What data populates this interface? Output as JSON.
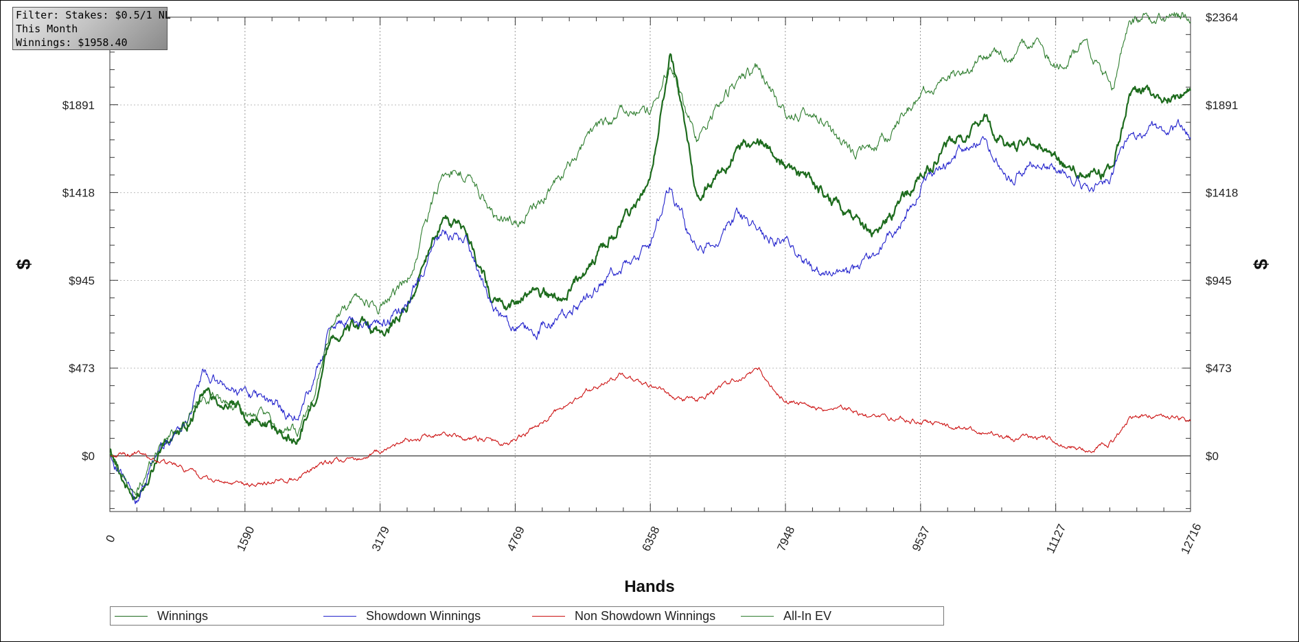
{
  "filter": {
    "line1": "Filter: Stakes: $0.5/1 NL",
    "line2": "This Month",
    "line3": "Winnings: $1958.40"
  },
  "chart_data": {
    "type": "line",
    "xlabel": "Hands",
    "ylabel_left": "$",
    "ylabel_right": "$",
    "xlim": [
      0,
      12716
    ],
    "ylim": [
      -300,
      2364
    ],
    "x_ticks": [
      "0",
      "1590",
      "3179",
      "4769",
      "6358",
      "7948",
      "9537",
      "11127",
      "12716"
    ],
    "y_ticks_left": [
      "$0",
      "$473",
      "$945",
      "$1418",
      "$1891"
    ],
    "y_ticks_right": [
      "$0",
      "$473",
      "$945",
      "$1418",
      "$1891",
      "$2364"
    ],
    "y_tick_values_left": [
      0,
      473,
      945,
      1418,
      1891
    ],
    "y_tick_values_right": [
      0,
      473,
      945,
      1418,
      1891,
      2364
    ],
    "grid": true,
    "legend_position": "bottom",
    "x": [
      0,
      300,
      600,
      900,
      1100,
      1400,
      1590,
      1800,
      2200,
      2400,
      2600,
      2900,
      3179,
      3500,
      3900,
      4200,
      4500,
      4700,
      5000,
      5300,
      5600,
      6000,
      6358,
      6600,
      6900,
      7400,
      7650,
      7948,
      8300,
      8700,
      9000,
      9300,
      9537,
      9900,
      10300,
      10600,
      10900,
      11127,
      11500,
      11800,
      12000,
      12300,
      12716
    ],
    "series": [
      {
        "name": "Winnings",
        "color": "#1d6b1d",
        "values": [
          20,
          -250,
          50,
          150,
          350,
          280,
          220,
          180,
          80,
          300,
          650,
          700,
          650,
          800,
          1280,
          1200,
          850,
          800,
          900,
          850,
          1000,
          1250,
          1450,
          2200,
          1400,
          1650,
          1700,
          1550,
          1450,
          1300,
          1200,
          1350,
          1500,
          1700,
          1800,
          1650,
          1700,
          1600,
          1500,
          1550,
          1950,
          1950,
          1950
        ]
      },
      {
        "name": "Showdown Winnings",
        "color": "#2222cc",
        "values": [
          20,
          -250,
          50,
          200,
          450,
          350,
          350,
          300,
          200,
          400,
          700,
          750,
          700,
          800,
          1200,
          1150,
          800,
          700,
          650,
          750,
          850,
          1000,
          1150,
          1450,
          1100,
          1300,
          1200,
          1150,
          1000,
          950,
          1100,
          1250,
          1450,
          1600,
          1700,
          1500,
          1600,
          1550,
          1450,
          1500,
          1750,
          1750,
          1750
        ]
      },
      {
        "name": "Non Showdown Winnings",
        "color": "#cc1111",
        "values": [
          0,
          10,
          -30,
          -80,
          -120,
          -150,
          -160,
          -150,
          -120,
          -60,
          -40,
          -20,
          20,
          80,
          120,
          100,
          80,
          60,
          150,
          250,
          350,
          430,
          380,
          320,
          300,
          420,
          450,
          300,
          250,
          250,
          200,
          200,
          180,
          160,
          120,
          100,
          100,
          80,
          30,
          80,
          200,
          220,
          190
        ]
      },
      {
        "name": "All-In EV",
        "color": "#2e7d2e",
        "values": [
          20,
          -220,
          80,
          180,
          330,
          280,
          230,
          200,
          120,
          330,
          700,
          850,
          800,
          950,
          1500,
          1520,
          1300,
          1250,
          1350,
          1500,
          1700,
          1850,
          1850,
          2100,
          1700,
          2050,
          2100,
          1850,
          1850,
          1650,
          1650,
          1800,
          1950,
          2050,
          2150,
          2150,
          2250,
          2100,
          2200,
          2000,
          2350,
          2350,
          2364
        ]
      }
    ]
  }
}
